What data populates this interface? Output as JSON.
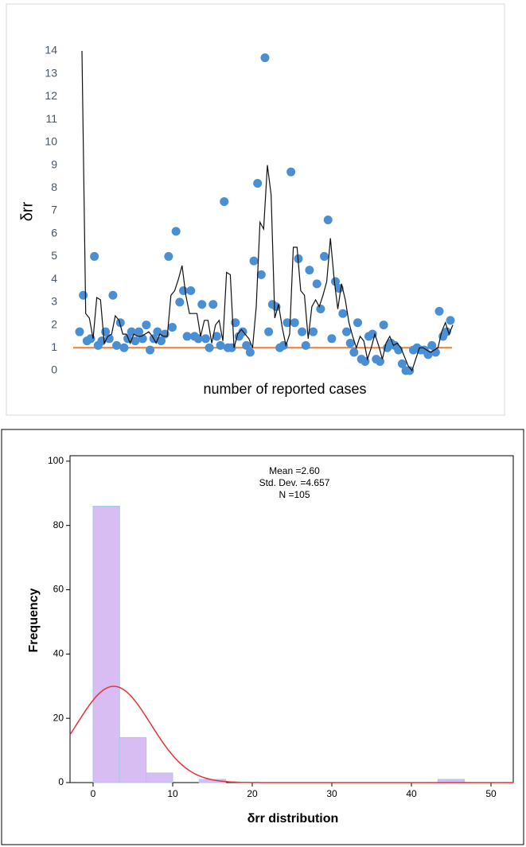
{
  "chart_data": [
    {
      "type": "scatter",
      "ylabel": "δrr",
      "xlabel": "number of reported cases",
      "ylim": [
        0,
        14
      ],
      "yticks": [
        0,
        1,
        2,
        3,
        4,
        5,
        6,
        7,
        8,
        9,
        10,
        11,
        12,
        13,
        14
      ],
      "color": "#4a8fd4",
      "values": [
        1.7,
        3.3,
        1.3,
        1.4,
        5.0,
        1.1,
        1.3,
        1.7,
        1.4,
        3.3,
        1.1,
        2.1,
        1.0,
        1.4,
        1.7,
        1.3,
        1.7,
        1.4,
        2.0,
        0.9,
        1.4,
        1.7,
        1.3,
        1.6,
        5.0,
        1.9,
        6.1,
        3.0,
        3.5,
        1.5,
        3.5,
        1.5,
        1.4,
        2.9,
        1.4,
        1.0,
        2.9,
        1.5,
        1.1,
        7.4,
        1.0,
        1.0,
        2.1,
        1.5,
        1.7,
        1.1,
        0.8,
        4.8,
        8.2,
        4.2,
        13.7,
        1.7,
        2.9,
        2.8,
        1.0,
        1.1,
        2.1,
        8.7,
        2.1,
        4.9,
        1.7,
        1.1,
        4.4,
        1.7,
        3.8,
        2.7,
        5.0,
        6.6,
        1.4,
        3.9,
        3.6,
        2.5,
        1.7,
        1.2,
        0.8,
        2.1,
        0.5,
        0.4,
        1.5,
        1.6,
        0.5,
        0.4,
        2.0,
        1.0,
        1.2,
        1.1,
        0.9,
        0.3,
        0.0,
        0.0,
        0.9,
        1.0,
        0.9,
        0.9,
        0.7,
        1.1,
        0.8,
        2.6,
        1.5,
        1.7,
        2.2
      ],
      "line_color": "#111111",
      "line_values": [
        14,
        2.5,
        2.3,
        1.4,
        3.2,
        3.1,
        1.2,
        1.5,
        1.6,
        2.4,
        2.2,
        1.6,
        1.6,
        1.2,
        1.6,
        1.5,
        1.5,
        1.6,
        1.7,
        1.5,
        1.2,
        1.6,
        1.5,
        1.5,
        3.3,
        3.5,
        4.0,
        4.6,
        3.3,
        2.5,
        2.5,
        2.5,
        1.5,
        2.2,
        2.2,
        1.2,
        2.0,
        2.2,
        1.3,
        4.3,
        4.2,
        1.0,
        1.6,
        1.8,
        1.6,
        1.4,
        1.0,
        2.8,
        6.5,
        6.2,
        9.0,
        7.7,
        2.3,
        2.9,
        1.9,
        1.1,
        1.6,
        5.4,
        5.4,
        3.5,
        3.3,
        1.4,
        2.8,
        3.1,
        2.8,
        3.3,
        3.9,
        5.8,
        4.0,
        2.7,
        3.8,
        3.1,
        2.1,
        1.5,
        1.0,
        1.5,
        1.3,
        0.5,
        1.0,
        1.6,
        1.1,
        0.5,
        1.2,
        1.5,
        1.1,
        1.2,
        1.0,
        0.6,
        0.2,
        0.0,
        0.5,
        1.0,
        1.0,
        0.9,
        0.8,
        0.9,
        1.0,
        1.7,
        2.1,
        1.6,
        2.0
      ],
      "reference_y": 1,
      "reference_color": "#ed7d31"
    },
    {
      "type": "histogram",
      "xlabel": "δrr distribution",
      "ylabel": "Frequency",
      "bins": [
        0,
        3.33,
        6.67,
        10,
        13.33,
        16.67,
        20,
        23.33,
        26.67,
        30,
        33.33,
        36.67,
        40,
        43.33,
        46.67
      ],
      "counts": [
        86,
        14,
        3,
        0,
        1,
        0,
        0,
        0,
        0,
        0,
        0,
        0,
        0,
        1
      ],
      "color": "#d8bdf3",
      "edge_color": "#a9c9e8",
      "xlim": [
        -2.9,
        52.8
      ],
      "xticks": [
        0,
        10,
        20,
        30,
        40,
        50
      ],
      "ylim": [
        0,
        101.7
      ],
      "yticks": [
        0,
        20,
        40,
        60,
        80,
        100
      ],
      "curve_color": "#e8313a",
      "stats": {
        "mean": {
          "value": 2.6,
          "label": "Mean =2.60"
        },
        "std_dev": {
          "value": 4.657,
          "label": "Std. Dev. =4.657"
        },
        "n": {
          "value": 105,
          "label": "N =105"
        }
      }
    }
  ]
}
